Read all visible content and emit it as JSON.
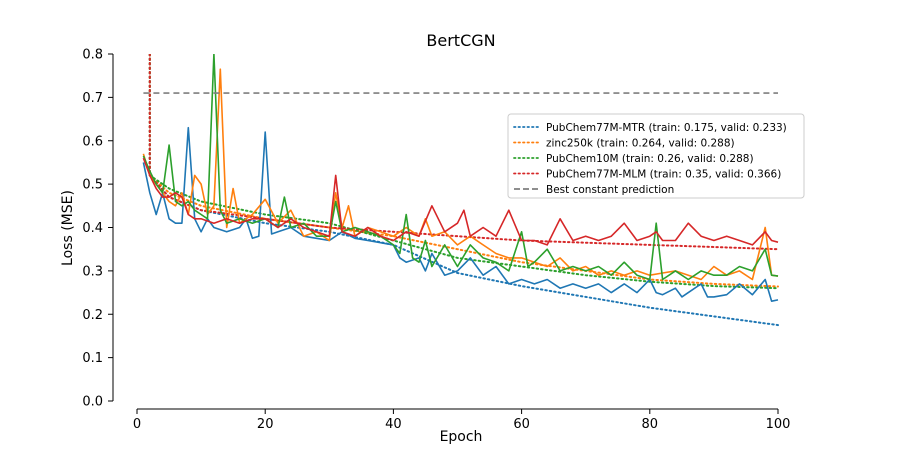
{
  "chart_data": {
    "type": "line",
    "title": "BertCGN",
    "xlabel": "Epoch",
    "ylabel": "Loss (MSE)",
    "xlim": [
      0,
      100
    ],
    "ylim": [
      0,
      0.8
    ],
    "xticks": [
      0,
      20,
      40,
      60,
      80,
      100
    ],
    "yticks": [
      0.0,
      0.1,
      0.2,
      0.3,
      0.4,
      0.5,
      0.6,
      0.7,
      0.8
    ],
    "ytick_labels": [
      "0.0",
      "0.1",
      "0.2",
      "0.3",
      "0.4",
      "0.5",
      "0.6",
      "0.7",
      "0.8"
    ],
    "legend_position": "right",
    "series": [
      {
        "name": "PubChem77M-MTR",
        "legend": "PubChem77M-MTR (train: 0.175, valid: 0.233)",
        "color": "#1f77b4",
        "train_final": 0.175,
        "valid_final": 0.233,
        "train_points": [
          [
            1,
            0.56
          ],
          [
            2,
            0.52
          ],
          [
            5,
            0.47
          ],
          [
            10,
            0.44
          ],
          [
            20,
            0.41
          ],
          [
            30,
            0.39
          ],
          [
            40,
            0.36
          ],
          [
            50,
            0.295
          ],
          [
            60,
            0.265
          ],
          [
            70,
            0.24
          ],
          [
            80,
            0.215
          ],
          [
            90,
            0.195
          ],
          [
            100,
            0.175
          ]
        ],
        "valid_points": [
          [
            1,
            0.55
          ],
          [
            2,
            0.48
          ],
          [
            3,
            0.43
          ],
          [
            4,
            0.48
          ],
          [
            5,
            0.42
          ],
          [
            6,
            0.41
          ],
          [
            7,
            0.41
          ],
          [
            8,
            0.63
          ],
          [
            9,
            0.42
          ],
          [
            10,
            0.39
          ],
          [
            11,
            0.42
          ],
          [
            12,
            0.4
          ],
          [
            14,
            0.39
          ],
          [
            16,
            0.4
          ],
          [
            17,
            0.42
          ],
          [
            18,
            0.375
          ],
          [
            19,
            0.38
          ],
          [
            20,
            0.62
          ],
          [
            21,
            0.385
          ],
          [
            22,
            0.39
          ],
          [
            24,
            0.4
          ],
          [
            26,
            0.38
          ],
          [
            28,
            0.375
          ],
          [
            30,
            0.37
          ],
          [
            32,
            0.39
          ],
          [
            34,
            0.375
          ],
          [
            36,
            0.37
          ],
          [
            38,
            0.365
          ],
          [
            40,
            0.36
          ],
          [
            41,
            0.33
          ],
          [
            42,
            0.32
          ],
          [
            44,
            0.33
          ],
          [
            45,
            0.3
          ],
          [
            46,
            0.34
          ],
          [
            48,
            0.29
          ],
          [
            50,
            0.3
          ],
          [
            52,
            0.33
          ],
          [
            54,
            0.29
          ],
          [
            56,
            0.31
          ],
          [
            58,
            0.27
          ],
          [
            60,
            0.28
          ],
          [
            62,
            0.27
          ],
          [
            64,
            0.28
          ],
          [
            66,
            0.26
          ],
          [
            68,
            0.27
          ],
          [
            70,
            0.26
          ],
          [
            72,
            0.27
          ],
          [
            74,
            0.25
          ],
          [
            76,
            0.27
          ],
          [
            78,
            0.25
          ],
          [
            80,
            0.28
          ],
          [
            81,
            0.25
          ],
          [
            82,
            0.245
          ],
          [
            84,
            0.26
          ],
          [
            85,
            0.24
          ],
          [
            86,
            0.25
          ],
          [
            88,
            0.27
          ],
          [
            89,
            0.24
          ],
          [
            90,
            0.24
          ],
          [
            92,
            0.245
          ],
          [
            94,
            0.27
          ],
          [
            96,
            0.245
          ],
          [
            98,
            0.28
          ],
          [
            99,
            0.23
          ],
          [
            100,
            0.233
          ]
        ]
      },
      {
        "name": "zinc250k",
        "legend": "zinc250k (train: 0.264, valid: 0.288)",
        "color": "#ff7f0e",
        "train_final": 0.264,
        "valid_final": 0.288,
        "train_points": [
          [
            1,
            0.56
          ],
          [
            2,
            0.52
          ],
          [
            5,
            0.48
          ],
          [
            10,
            0.45
          ],
          [
            20,
            0.42
          ],
          [
            30,
            0.4
          ],
          [
            40,
            0.38
          ],
          [
            50,
            0.35
          ],
          [
            60,
            0.32
          ],
          [
            70,
            0.3
          ],
          [
            80,
            0.28
          ],
          [
            90,
            0.27
          ],
          [
            100,
            0.264
          ]
        ],
        "valid_points": [
          [
            1,
            0.57
          ],
          [
            2,
            0.52
          ],
          [
            3,
            0.5
          ],
          [
            4,
            0.48
          ],
          [
            5,
            0.46
          ],
          [
            6,
            0.45
          ],
          [
            7,
            0.48
          ],
          [
            8,
            0.43
          ],
          [
            9,
            0.52
          ],
          [
            10,
            0.5
          ],
          [
            11,
            0.43
          ],
          [
            12,
            0.45
          ],
          [
            13,
            0.765
          ],
          [
            14,
            0.4
          ],
          [
            15,
            0.49
          ],
          [
            16,
            0.41
          ],
          [
            18,
            0.43
          ],
          [
            20,
            0.465
          ],
          [
            22,
            0.41
          ],
          [
            24,
            0.44
          ],
          [
            26,
            0.38
          ],
          [
            28,
            0.39
          ],
          [
            30,
            0.37
          ],
          [
            31,
            0.48
          ],
          [
            32,
            0.4
          ],
          [
            33,
            0.45
          ],
          [
            34,
            0.38
          ],
          [
            36,
            0.4
          ],
          [
            38,
            0.39
          ],
          [
            40,
            0.38
          ],
          [
            42,
            0.4
          ],
          [
            44,
            0.38
          ],
          [
            45,
            0.42
          ],
          [
            46,
            0.38
          ],
          [
            48,
            0.39
          ],
          [
            50,
            0.36
          ],
          [
            52,
            0.38
          ],
          [
            54,
            0.36
          ],
          [
            56,
            0.34
          ],
          [
            58,
            0.33
          ],
          [
            60,
            0.33
          ],
          [
            62,
            0.32
          ],
          [
            64,
            0.31
          ],
          [
            66,
            0.33
          ],
          [
            68,
            0.3
          ],
          [
            70,
            0.31
          ],
          [
            72,
            0.29
          ],
          [
            74,
            0.3
          ],
          [
            76,
            0.29
          ],
          [
            78,
            0.3
          ],
          [
            80,
            0.29
          ],
          [
            82,
            0.295
          ],
          [
            84,
            0.3
          ],
          [
            86,
            0.29
          ],
          [
            88,
            0.28
          ],
          [
            90,
            0.31
          ],
          [
            92,
            0.29
          ],
          [
            94,
            0.3
          ],
          [
            96,
            0.28
          ],
          [
            98,
            0.4
          ],
          [
            99,
            0.29
          ],
          [
            100,
            0.288
          ]
        ]
      },
      {
        "name": "PubChem10M",
        "legend": "PubChem10M (train: 0.26, valid: 0.288)",
        "color": "#2ca02c",
        "train_final": 0.26,
        "valid_final": 0.288,
        "train_points": [
          [
            1,
            0.56
          ],
          [
            2,
            0.52
          ],
          [
            5,
            0.49
          ],
          [
            10,
            0.46
          ],
          [
            20,
            0.43
          ],
          [
            30,
            0.41
          ],
          [
            40,
            0.37
          ],
          [
            50,
            0.33
          ],
          [
            60,
            0.31
          ],
          [
            70,
            0.29
          ],
          [
            80,
            0.275
          ],
          [
            90,
            0.265
          ],
          [
            100,
            0.26
          ]
        ],
        "valid_points": [
          [
            1,
            0.565
          ],
          [
            2,
            0.53
          ],
          [
            3,
            0.5
          ],
          [
            4,
            0.48
          ],
          [
            5,
            0.59
          ],
          [
            6,
            0.46
          ],
          [
            7,
            0.45
          ],
          [
            8,
            0.46
          ],
          [
            9,
            0.44
          ],
          [
            10,
            0.43
          ],
          [
            11,
            0.42
          ],
          [
            12,
            0.8
          ],
          [
            13,
            0.44
          ],
          [
            14,
            0.41
          ],
          [
            16,
            0.42
          ],
          [
            18,
            0.41
          ],
          [
            20,
            0.42
          ],
          [
            22,
            0.4
          ],
          [
            23,
            0.47
          ],
          [
            24,
            0.4
          ],
          [
            26,
            0.41
          ],
          [
            28,
            0.38
          ],
          [
            30,
            0.38
          ],
          [
            31,
            0.46
          ],
          [
            32,
            0.39
          ],
          [
            34,
            0.4
          ],
          [
            36,
            0.39
          ],
          [
            38,
            0.38
          ],
          [
            40,
            0.36
          ],
          [
            41,
            0.34
          ],
          [
            42,
            0.43
          ],
          [
            43,
            0.33
          ],
          [
            44,
            0.32
          ],
          [
            45,
            0.37
          ],
          [
            46,
            0.31
          ],
          [
            48,
            0.36
          ],
          [
            50,
            0.31
          ],
          [
            52,
            0.36
          ],
          [
            54,
            0.33
          ],
          [
            56,
            0.32
          ],
          [
            58,
            0.3
          ],
          [
            60,
            0.39
          ],
          [
            61,
            0.31
          ],
          [
            62,
            0.32
          ],
          [
            64,
            0.35
          ],
          [
            66,
            0.3
          ],
          [
            68,
            0.31
          ],
          [
            70,
            0.3
          ],
          [
            72,
            0.31
          ],
          [
            74,
            0.29
          ],
          [
            76,
            0.32
          ],
          [
            78,
            0.29
          ],
          [
            80,
            0.28
          ],
          [
            81,
            0.41
          ],
          [
            82,
            0.28
          ],
          [
            84,
            0.3
          ],
          [
            86,
            0.28
          ],
          [
            88,
            0.3
          ],
          [
            90,
            0.29
          ],
          [
            92,
            0.29
          ],
          [
            94,
            0.31
          ],
          [
            96,
            0.3
          ],
          [
            98,
            0.35
          ],
          [
            99,
            0.29
          ],
          [
            100,
            0.288
          ]
        ]
      },
      {
        "name": "PubChem77M-MLM",
        "legend": "PubChem77M-MLM (train: 0.35, valid: 0.366)",
        "color": "#d62728",
        "train_final": 0.35,
        "valid_final": 0.366,
        "train_points": [
          [
            1,
            0.56
          ],
          [
            2,
            0.52
          ],
          [
            5,
            0.47
          ],
          [
            10,
            0.44
          ],
          [
            20,
            0.42
          ],
          [
            30,
            0.4
          ],
          [
            40,
            0.39
          ],
          [
            50,
            0.38
          ],
          [
            60,
            0.37
          ],
          [
            70,
            0.365
          ],
          [
            80,
            0.36
          ],
          [
            90,
            0.355
          ],
          [
            100,
            0.35
          ]
        ],
        "valid_points": [
          [
            1,
            0.56
          ],
          [
            2,
            0.52
          ],
          [
            3,
            0.49
          ],
          [
            4,
            0.47
          ],
          [
            5,
            0.47
          ],
          [
            6,
            0.48
          ],
          [
            7,
            0.47
          ],
          [
            8,
            0.43
          ],
          [
            9,
            0.42
          ],
          [
            10,
            0.42
          ],
          [
            12,
            0.41
          ],
          [
            14,
            0.42
          ],
          [
            16,
            0.41
          ],
          [
            18,
            0.42
          ],
          [
            20,
            0.42
          ],
          [
            22,
            0.4
          ],
          [
            24,
            0.42
          ],
          [
            26,
            0.4
          ],
          [
            28,
            0.39
          ],
          [
            30,
            0.38
          ],
          [
            31,
            0.52
          ],
          [
            32,
            0.39
          ],
          [
            34,
            0.38
          ],
          [
            36,
            0.4
          ],
          [
            38,
            0.38
          ],
          [
            40,
            0.37
          ],
          [
            42,
            0.39
          ],
          [
            44,
            0.38
          ],
          [
            46,
            0.45
          ],
          [
            48,
            0.39
          ],
          [
            50,
            0.41
          ],
          [
            51,
            0.44
          ],
          [
            52,
            0.38
          ],
          [
            54,
            0.4
          ],
          [
            56,
            0.38
          ],
          [
            58,
            0.44
          ],
          [
            60,
            0.37
          ],
          [
            62,
            0.37
          ],
          [
            64,
            0.36
          ],
          [
            66,
            0.42
          ],
          [
            68,
            0.37
          ],
          [
            70,
            0.38
          ],
          [
            72,
            0.37
          ],
          [
            74,
            0.38
          ],
          [
            76,
            0.41
          ],
          [
            78,
            0.37
          ],
          [
            80,
            0.38
          ],
          [
            81,
            0.39
          ],
          [
            82,
            0.37
          ],
          [
            84,
            0.37
          ],
          [
            86,
            0.41
          ],
          [
            88,
            0.38
          ],
          [
            90,
            0.37
          ],
          [
            92,
            0.38
          ],
          [
            94,
            0.37
          ],
          [
            96,
            0.36
          ],
          [
            98,
            0.39
          ],
          [
            99,
            0.37
          ],
          [
            100,
            0.366
          ]
        ]
      },
      {
        "name": "Best constant prediction",
        "legend": "Best constant prediction",
        "color": "#7f7f7f",
        "constant": 0.71
      }
    ]
  }
}
